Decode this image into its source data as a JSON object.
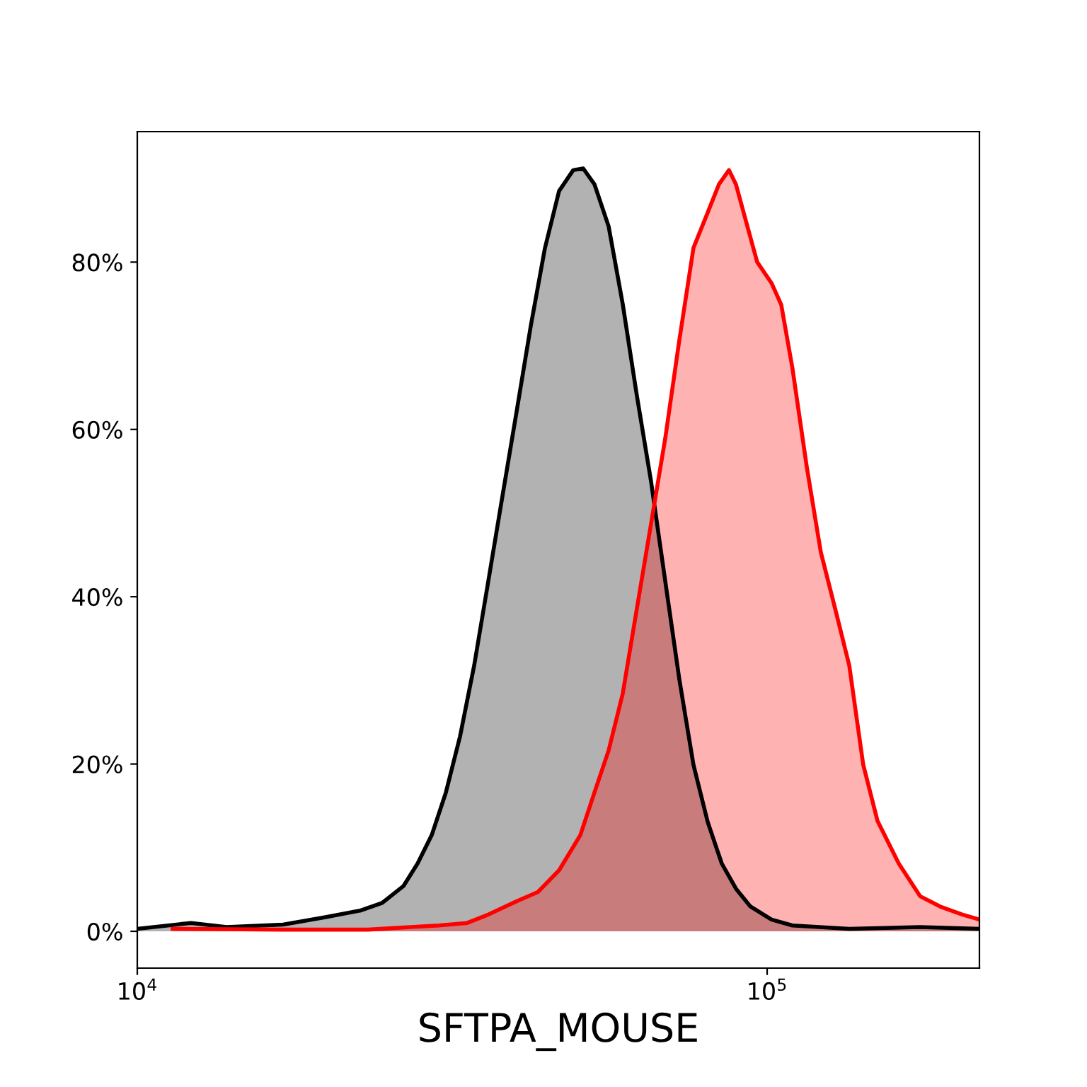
{
  "chart_data": {
    "type": "area",
    "xlabel": "SFTPA_MOUSE",
    "log": "x",
    "grid": false,
    "xlim": [
      10000,
      217300
    ],
    "xticks": [
      {
        "value": 10000,
        "label": "10$^{4}$"
      },
      {
        "value": 100000,
        "label": "10$^{5}$"
      }
    ],
    "ylim": [
      -4.4,
      95.6
    ],
    "yticks": [
      {
        "value": 0,
        "label": "0%"
      },
      {
        "value": 20,
        "label": "20%"
      },
      {
        "value": 40,
        "label": "40%"
      },
      {
        "value": 60,
        "label": "60%"
      },
      {
        "value": 80,
        "label": "80%"
      }
    ],
    "series": [
      {
        "color": "#000000",
        "x": [
          10000,
          12170,
          13860,
          17040,
          19900,
          22650,
          24480,
          26450,
          27860,
          29340,
          30900,
          32540,
          34270,
          36090,
          38010,
          40030,
          42150,
          44390,
          46740,
          49220,
          51050,
          53190,
          56010,
          58980,
          62120,
          65410,
          68890,
          72550,
          76390,
          80450,
          84720,
          89220,
          93970,
          101600,
          109700,
          135000,
          174900,
          217300
        ],
        "values": [
          0.3,
          1.0,
          0.5,
          0.8,
          1.7,
          2.5,
          3.4,
          5.4,
          8.1,
          11.5,
          16.6,
          23.3,
          31.8,
          41.9,
          52.1,
          62.2,
          72.4,
          81.7,
          88.5,
          91.0,
          91.2,
          89.3,
          84.3,
          75.0,
          64.0,
          53.8,
          41.9,
          30.1,
          19.9,
          13.1,
          8.1,
          5.1,
          3.0,
          1.4,
          0.7,
          0.3,
          0.5,
          0.3
        ]
      },
      {
        "color": "#ff0000",
        "x": [
          11380,
          17040,
          23240,
          27150,
          30110,
          33400,
          36090,
          40030,
          43250,
          46740,
          50510,
          53190,
          56010,
          58980,
          62120,
          65410,
          68890,
          72550,
          76390,
          80450,
          83840,
          86980,
          89220,
          93010,
          96440,
          101600,
          105300,
          109700,
          115600,
          121700,
          128200,
          135000,
          142100,
          149700,
          161800,
          174900,
          189000,
          204200,
          217300
        ],
        "values": [
          0.3,
          0.2,
          0.2,
          0.5,
          0.7,
          1.0,
          2.0,
          3.6,
          4.7,
          7.3,
          11.5,
          16.6,
          21.6,
          28.4,
          38.6,
          48.7,
          58.9,
          70.7,
          81.7,
          85.9,
          89.3,
          91.0,
          89.3,
          84.3,
          80.0,
          77.5,
          74.9,
          67.3,
          55.5,
          45.3,
          38.6,
          31.8,
          19.9,
          13.2,
          8.1,
          4.2,
          2.9,
          2.0,
          1.4
        ]
      }
    ]
  }
}
